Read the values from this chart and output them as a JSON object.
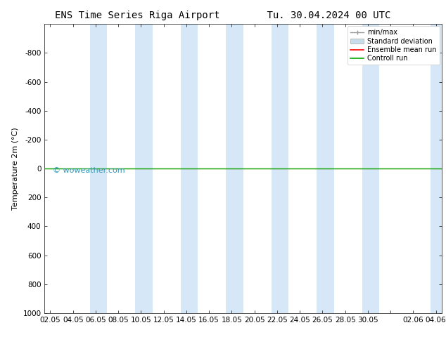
{
  "title_left": "ENS Time Series Riga Airport",
  "title_right": "Tu. 30.04.2024 00 UTC",
  "ylabel": "Temperature 2m (°C)",
  "ylim_bottom": 1000,
  "ylim_top": -1000,
  "yticks": [
    -800,
    -600,
    -400,
    -200,
    0,
    200,
    400,
    600,
    800,
    1000
  ],
  "x_labels": [
    "02.05",
    "04.05",
    "06.05",
    "08.05",
    "10.05",
    "12.05",
    "14.05",
    "16.05",
    "18.05",
    "20.05",
    "22.05",
    "24.05",
    "26.05",
    "28.05",
    "30.05",
    "",
    "02.06",
    "04.06"
  ],
  "x_positions": [
    0,
    2,
    4,
    6,
    8,
    10,
    12,
    14,
    16,
    18,
    20,
    22,
    24,
    26,
    28,
    30,
    32,
    34
  ],
  "xlim": [
    -0.5,
    34.5
  ],
  "shade_bands": [
    [
      3.5,
      5.0
    ],
    [
      7.5,
      9.0
    ],
    [
      11.5,
      13.0
    ],
    [
      15.5,
      17.0
    ],
    [
      19.5,
      21.0
    ],
    [
      23.5,
      25.0
    ],
    [
      27.5,
      29.0
    ],
    [
      33.5,
      34.5
    ]
  ],
  "shade_color": "#d6e8f7",
  "bg_color": "#ffffff",
  "plot_bg_color": "#ffffff",
  "control_run_value": 0,
  "ensemble_mean_value": 0,
  "control_run_color": "#00aa00",
  "ensemble_mean_color": "#ff0000",
  "legend_minmax_color": "#999999",
  "legend_stddev_color": "#c8dcea",
  "watermark": "© woweather.com",
  "watermark_color": "#3399bb",
  "title_fontsize": 10,
  "axis_fontsize": 8,
  "tick_fontsize": 7.5
}
